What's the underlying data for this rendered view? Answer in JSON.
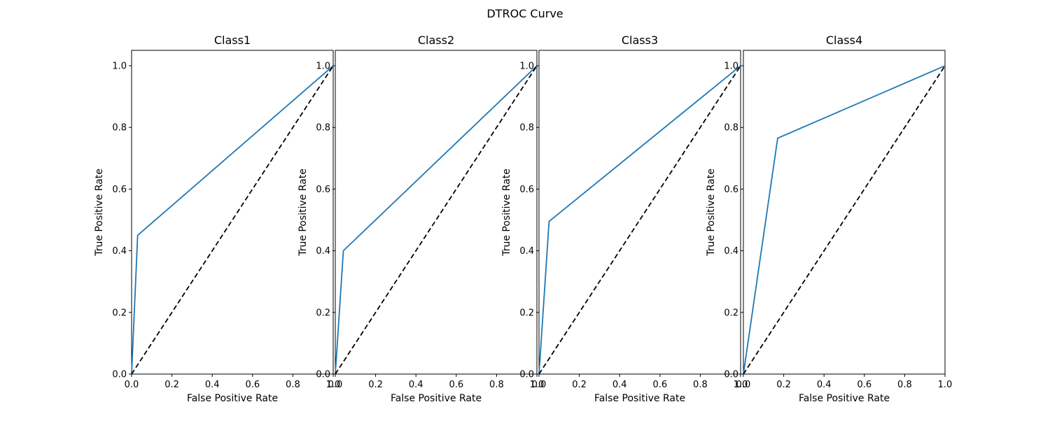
{
  "figure": {
    "title": "DTROC Curve"
  },
  "colors": {
    "roc_line": "#1f77b4",
    "chance_line": "#000000",
    "axes": "#000000",
    "background": "#ffffff"
  },
  "chart_data": [
    {
      "type": "line",
      "title": "Class1",
      "xlabel": "False Positive Rate",
      "ylabel": "True Positive Rate",
      "xlim": [
        0,
        1
      ],
      "ylim": [
        0,
        1.05
      ],
      "xticks": [
        "0.0",
        "0.2",
        "0.4",
        "0.6",
        "0.8",
        "1.0"
      ],
      "yticks": [
        "0.0",
        "0.2",
        "0.4",
        "0.6",
        "0.8",
        "1.0"
      ],
      "series": [
        {
          "x": [
            0,
            0.03,
            1
          ],
          "y": [
            0,
            0.45,
            1
          ]
        },
        {
          "x": [
            0,
            1
          ],
          "y": [
            0,
            1
          ],
          "style": "dashed"
        }
      ]
    },
    {
      "type": "line",
      "title": "Class2",
      "xlabel": "False Positive Rate",
      "ylabel": "True Positive Rate",
      "xlim": [
        0,
        1
      ],
      "ylim": [
        0,
        1.05
      ],
      "xticks": [
        "0.0",
        "0.2",
        "0.4",
        "0.6",
        "0.8",
        "1.0"
      ],
      "yticks": [
        "0.0",
        "0.2",
        "0.4",
        "0.6",
        "0.8",
        "1.0"
      ],
      "series": [
        {
          "x": [
            0,
            0.04,
            1
          ],
          "y": [
            0,
            0.4,
            1
          ]
        },
        {
          "x": [
            0,
            1
          ],
          "y": [
            0,
            1
          ],
          "style": "dashed"
        }
      ]
    },
    {
      "type": "line",
      "title": "Class3",
      "xlabel": "False Positive Rate",
      "ylabel": "True Positive Rate",
      "xlim": [
        0,
        1
      ],
      "ylim": [
        0,
        1.05
      ],
      "xticks": [
        "0.0",
        "0.2",
        "0.4",
        "0.6",
        "0.8",
        "1.0"
      ],
      "yticks": [
        "0.0",
        "0.2",
        "0.4",
        "0.6",
        "0.8",
        "1.0"
      ],
      "series": [
        {
          "x": [
            0,
            0.05,
            1
          ],
          "y": [
            0,
            0.495,
            1
          ]
        },
        {
          "x": [
            0,
            1
          ],
          "y": [
            0,
            1
          ],
          "style": "dashed"
        }
      ]
    },
    {
      "type": "line",
      "title": "Class4",
      "xlabel": "False Positive Rate",
      "ylabel": "True Positive Rate",
      "xlim": [
        0,
        1
      ],
      "ylim": [
        0,
        1.05
      ],
      "xticks": [
        "0.0",
        "0.2",
        "0.4",
        "0.6",
        "0.8",
        "1.0"
      ],
      "yticks": [
        "0.0",
        "0.2",
        "0.4",
        "0.6",
        "0.8",
        "1.0"
      ],
      "series": [
        {
          "x": [
            0,
            0.17,
            1
          ],
          "y": [
            0,
            0.765,
            1
          ]
        },
        {
          "x": [
            0,
            1
          ],
          "y": [
            0,
            1
          ],
          "style": "dashed"
        }
      ]
    }
  ]
}
